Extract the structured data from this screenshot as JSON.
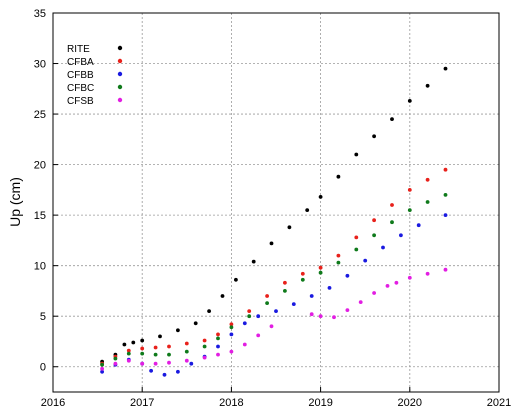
{
  "chart_data": {
    "type": "scatter",
    "title": "",
    "xlabel": "",
    "ylabel": "Up (cm)",
    "xlim": [
      2016,
      2021
    ],
    "ylim": [
      -2.5,
      35
    ],
    "xticks": [
      2016,
      2017,
      2018,
      2019,
      2020,
      2021
    ],
    "yticks": [
      0,
      5,
      10,
      15,
      20,
      25,
      30,
      35
    ],
    "grid": true,
    "legend": "top-left",
    "series": [
      {
        "name": "RITE",
        "color": "#000000",
        "x": [
          2016.55,
          2016.7,
          2016.8,
          2016.9,
          2017.0,
          2017.2,
          2017.4,
          2017.6,
          2017.75,
          2017.9,
          2018.05,
          2018.25,
          2018.45,
          2018.65,
          2018.85,
          2019.0,
          2019.2,
          2019.4,
          2019.6,
          2019.8,
          2020.0,
          2020.2,
          2020.4
        ],
        "values": [
          0.5,
          1.2,
          2.2,
          2.4,
          2.6,
          3.0,
          3.6,
          4.3,
          5.5,
          7.0,
          8.6,
          10.4,
          12.2,
          13.8,
          15.5,
          16.8,
          18.8,
          21.0,
          22.8,
          24.5,
          26.3,
          27.8,
          29.5
        ]
      },
      {
        "name": "CFBA",
        "color": "#e8211b",
        "x": [
          2016.55,
          2016.7,
          2016.85,
          2017.0,
          2017.15,
          2017.3,
          2017.5,
          2017.7,
          2017.85,
          2018.0,
          2018.2,
          2018.4,
          2018.6,
          2018.8,
          2019.0,
          2019.2,
          2019.4,
          2019.6,
          2019.8,
          2020.0,
          2020.2,
          2020.4
        ],
        "values": [
          0.3,
          1.0,
          1.6,
          1.8,
          1.9,
          2.0,
          2.3,
          2.6,
          3.2,
          4.2,
          5.5,
          7.0,
          8.3,
          9.2,
          9.8,
          11.0,
          12.8,
          14.5,
          16.0,
          17.5,
          18.5,
          19.5
        ]
      },
      {
        "name": "CFBB",
        "color": "#1a1ae0",
        "x": [
          2016.55,
          2016.7,
          2016.85,
          2017.0,
          2017.1,
          2017.25,
          2017.4,
          2017.55,
          2017.7,
          2017.85,
          2018.0,
          2018.15,
          2018.3,
          2018.5,
          2018.7,
          2018.9,
          2019.1,
          2019.3,
          2019.5,
          2019.7,
          2019.9,
          2020.1,
          2020.4
        ],
        "values": [
          -0.5,
          0.2,
          0.7,
          0.3,
          -0.4,
          -0.8,
          -0.5,
          0.3,
          1.0,
          2.0,
          3.2,
          4.3,
          5.0,
          5.5,
          6.2,
          7.0,
          7.8,
          9.0,
          10.5,
          11.8,
          13.0,
          14.0,
          15.0
        ]
      },
      {
        "name": "CFBC",
        "color": "#0f7a1b",
        "x": [
          2016.55,
          2016.7,
          2016.85,
          2017.0,
          2017.15,
          2017.3,
          2017.5,
          2017.7,
          2017.85,
          2018.0,
          2018.2,
          2018.4,
          2018.6,
          2018.8,
          2019.0,
          2019.2,
          2019.4,
          2019.6,
          2019.8,
          2020.0,
          2020.2,
          2020.4
        ],
        "values": [
          0.2,
          0.8,
          1.3,
          1.3,
          1.2,
          1.2,
          1.5,
          2.0,
          2.8,
          3.9,
          5.0,
          6.3,
          7.5,
          8.6,
          9.3,
          10.3,
          11.6,
          13.0,
          14.3,
          15.5,
          16.3,
          17.0
        ]
      },
      {
        "name": "CFSB",
        "color": "#e21ee2",
        "x": [
          2016.55,
          2016.7,
          2016.85,
          2017.0,
          2017.15,
          2017.3,
          2017.5,
          2017.7,
          2017.85,
          2018.0,
          2018.15,
          2018.3,
          2018.45,
          2018.9,
          2019.0,
          2019.15,
          2019.3,
          2019.45,
          2019.6,
          2019.75,
          2019.85,
          2020.0,
          2020.2,
          2020.4
        ],
        "values": [
          -0.2,
          0.3,
          0.6,
          0.3,
          0.3,
          0.4,
          0.6,
          0.9,
          1.2,
          1.5,
          2.2,
          3.1,
          4.0,
          5.2,
          5.0,
          4.9,
          5.6,
          6.4,
          7.3,
          8.0,
          8.3,
          8.8,
          9.2,
          9.6
        ]
      }
    ]
  }
}
